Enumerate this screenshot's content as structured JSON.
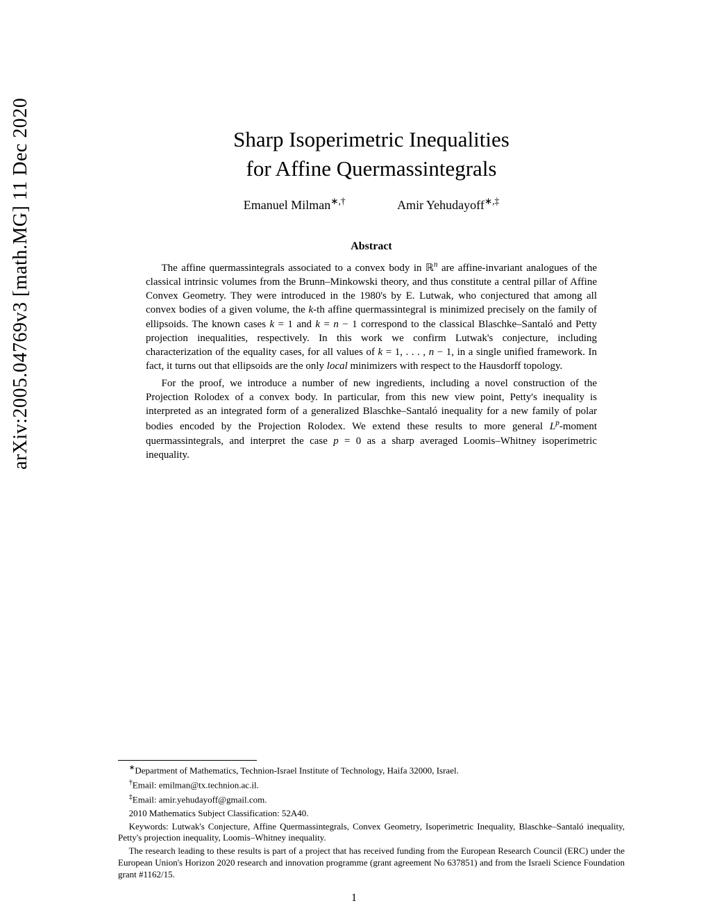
{
  "arxiv": "arXiv:2005.04769v3  [math.MG]  11 Dec 2020",
  "title_line1": "Sharp Isoperimetric Inequalities",
  "title_line2": "for Affine Quermassintegrals",
  "author1_name": "Emanuel Milman",
  "author1_marks": "∗,†",
  "author2_name": "Amir Yehudayoff",
  "author2_marks": "∗,‡",
  "abstract_heading": "Abstract",
  "abstract_p1_a": "The affine quermassintegrals associated to a convex body in ℝ",
  "abstract_p1_n": "n",
  "abstract_p1_b": " are affine-invariant analogues of the classical intrinsic volumes from the Brunn–Minkowski theory, and thus constitute a central pillar of Affine Convex Geometry. They were introduced in the 1980's by E. Lutwak, who conjectured that among all convex bodies of a given volume, the ",
  "abstract_p1_k1": "k",
  "abstract_p1_c": "-th affine quermassintegral is minimized precisely on the family of ellipsoids. The known cases ",
  "abstract_p1_k2": "k",
  "abstract_p1_eq1": " = 1 and ",
  "abstract_p1_k3": "k",
  "abstract_p1_eq2": " = ",
  "abstract_p1_n2": "n",
  "abstract_p1_eq3": " − 1 correspond to the classical Blaschke–Santaló and Petty projection inequalities, respectively. In this work we confirm Lutwak's conjecture, including characterization of the equality cases, for all values of ",
  "abstract_p1_k4": "k",
  "abstract_p1_eq4": " = 1, . . . , ",
  "abstract_p1_n3": "n",
  "abstract_p1_eq5": " − 1, in a single unified framework. In fact, it turns out that ellipsoids are the only ",
  "abstract_p1_local": "local",
  "abstract_p1_d": " minimizers with respect to the Hausdorff topology.",
  "abstract_p2_a": "For the proof, we introduce a number of new ingredients, including a novel construction of the Projection Rolodex of a convex body. In particular, from this new view point, Petty's inequality is interpreted as an integrated form of a generalized Blaschke–Santaló inequality for a new family of polar bodies encoded by the Projection Rolodex. We extend these results to more general ",
  "abstract_p2_L": "L",
  "abstract_p2_p": "p",
  "abstract_p2_b": "-moment quermassintegrals, and interpret the case ",
  "abstract_p2_pvar": "p",
  "abstract_p2_c": " = 0 as a sharp averaged Loomis–Whitney isoperimetric inequality.",
  "fn_star_mark": "∗",
  "fn_star": "Department of Mathematics, Technion-Israel Institute of Technology, Haifa 32000, Israel.",
  "fn_dagger_mark": "†",
  "fn_dagger": "Email: emilman@tx.technion.ac.il.",
  "fn_ddagger_mark": "‡",
  "fn_ddagger": "Email: amir.yehudayoff@gmail.com.",
  "fn_msc": "2010 Mathematics Subject Classification: 52A40.",
  "fn_keywords": "Keywords: Lutwak's Conjecture, Affine Quermassintegrals, Convex Geometry, Isoperimetric Inequality, Blaschke–Santaló inequality, Petty's projection inequality, Loomis–Whitney inequality.",
  "fn_funding": "The research leading to these results is part of a project that has received funding from the European Research Council (ERC) under the European Union's Horizon 2020 research and innovation programme (grant agreement No 637851) and from the Israeli Science Foundation grant #1162/15.",
  "page_number": "1"
}
